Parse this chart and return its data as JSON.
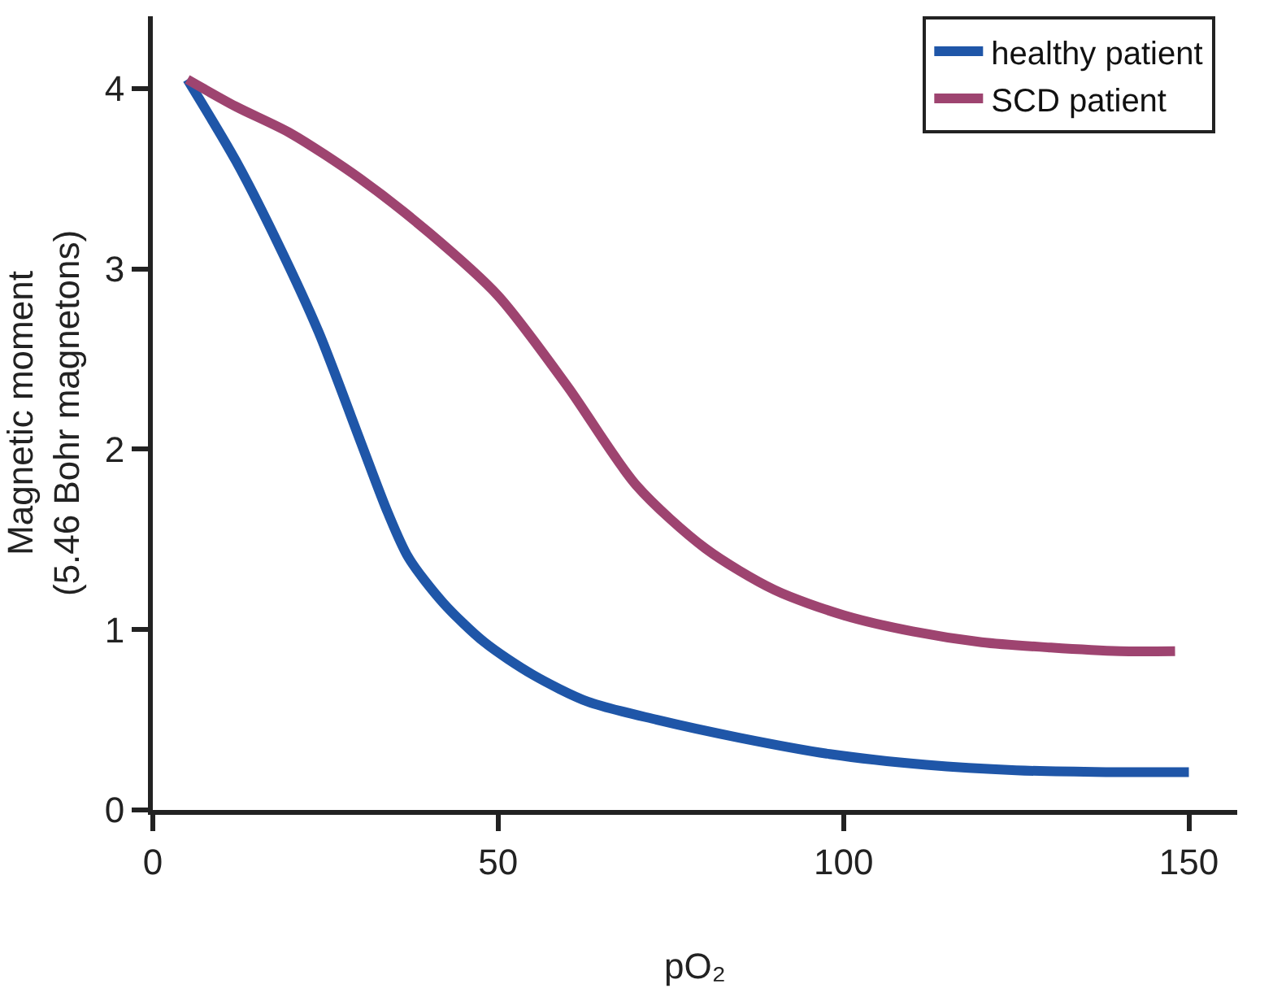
{
  "chart_data": {
    "type": "line",
    "xlabel": "pO₂",
    "ylabel": "Magnetic moment\n(5.46 Bohr magnetons)",
    "xlim": [
      0,
      157
    ],
    "ylim": [
      0,
      4.4
    ],
    "xticks": [
      0,
      50,
      100,
      150
    ],
    "yticks": [
      0,
      1,
      2,
      3,
      4
    ],
    "legend": "top right",
    "marker": "none",
    "line_style": "solid",
    "series": [
      {
        "name": "healthy patient",
        "color": "#1f56a8",
        "x": [
          5,
          12,
          18,
          24,
          30,
          34,
          37,
          42,
          48,
          55,
          63,
          73,
          85,
          98,
          112,
          125,
          138,
          150
        ],
        "values": [
          4.05,
          3.6,
          3.15,
          2.65,
          2.05,
          1.65,
          1.4,
          1.15,
          0.93,
          0.75,
          0.6,
          0.5,
          0.4,
          0.31,
          0.25,
          0.22,
          0.21,
          0.21
        ]
      },
      {
        "name": "SCD patient",
        "color": "#9e4470",
        "x": [
          5,
          12,
          20,
          30,
          40,
          50,
          60,
          70,
          80,
          90,
          100,
          110,
          120,
          130,
          140,
          148
        ],
        "values": [
          4.05,
          3.9,
          3.75,
          3.5,
          3.2,
          2.85,
          2.35,
          1.8,
          1.45,
          1.22,
          1.08,
          0.99,
          0.93,
          0.9,
          0.88,
          0.88
        ]
      }
    ]
  }
}
